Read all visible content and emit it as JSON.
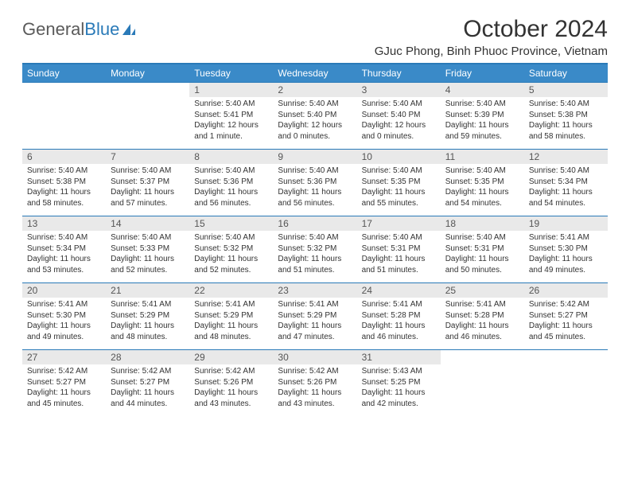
{
  "logo": {
    "text1": "General",
    "text2": "Blue"
  },
  "title": "October 2024",
  "location": "GJuc Phong, Binh Phuoc Province, Vietnam",
  "colors": {
    "header_bg": "#3a8ac8",
    "header_text": "#ffffff",
    "border": "#2a7ab8",
    "daynum_bg": "#e9e9e9",
    "text": "#333333",
    "logo_gray": "#5a5a5a",
    "logo_blue": "#2a7ab8",
    "page_bg": "#ffffff"
  },
  "typography": {
    "month_title_size": 30,
    "location_size": 15,
    "weekday_size": 12,
    "daynum_size": 12,
    "body_size": 10
  },
  "weekdays": [
    "Sunday",
    "Monday",
    "Tuesday",
    "Wednesday",
    "Thursday",
    "Friday",
    "Saturday"
  ],
  "weeks": [
    [
      {
        "num": "",
        "lines": [
          "",
          "",
          ""
        ]
      },
      {
        "num": "",
        "lines": [
          "",
          "",
          ""
        ]
      },
      {
        "num": "1",
        "lines": [
          "Sunrise: 5:40 AM",
          "Sunset: 5:41 PM",
          "Daylight: 12 hours and 1 minute."
        ]
      },
      {
        "num": "2",
        "lines": [
          "Sunrise: 5:40 AM",
          "Sunset: 5:40 PM",
          "Daylight: 12 hours and 0 minutes."
        ]
      },
      {
        "num": "3",
        "lines": [
          "Sunrise: 5:40 AM",
          "Sunset: 5:40 PM",
          "Daylight: 12 hours and 0 minutes."
        ]
      },
      {
        "num": "4",
        "lines": [
          "Sunrise: 5:40 AM",
          "Sunset: 5:39 PM",
          "Daylight: 11 hours and 59 minutes."
        ]
      },
      {
        "num": "5",
        "lines": [
          "Sunrise: 5:40 AM",
          "Sunset: 5:38 PM",
          "Daylight: 11 hours and 58 minutes."
        ]
      }
    ],
    [
      {
        "num": "6",
        "lines": [
          "Sunrise: 5:40 AM",
          "Sunset: 5:38 PM",
          "Daylight: 11 hours and 58 minutes."
        ]
      },
      {
        "num": "7",
        "lines": [
          "Sunrise: 5:40 AM",
          "Sunset: 5:37 PM",
          "Daylight: 11 hours and 57 minutes."
        ]
      },
      {
        "num": "8",
        "lines": [
          "Sunrise: 5:40 AM",
          "Sunset: 5:36 PM",
          "Daylight: 11 hours and 56 minutes."
        ]
      },
      {
        "num": "9",
        "lines": [
          "Sunrise: 5:40 AM",
          "Sunset: 5:36 PM",
          "Daylight: 11 hours and 56 minutes."
        ]
      },
      {
        "num": "10",
        "lines": [
          "Sunrise: 5:40 AM",
          "Sunset: 5:35 PM",
          "Daylight: 11 hours and 55 minutes."
        ]
      },
      {
        "num": "11",
        "lines": [
          "Sunrise: 5:40 AM",
          "Sunset: 5:35 PM",
          "Daylight: 11 hours and 54 minutes."
        ]
      },
      {
        "num": "12",
        "lines": [
          "Sunrise: 5:40 AM",
          "Sunset: 5:34 PM",
          "Daylight: 11 hours and 54 minutes."
        ]
      }
    ],
    [
      {
        "num": "13",
        "lines": [
          "Sunrise: 5:40 AM",
          "Sunset: 5:34 PM",
          "Daylight: 11 hours and 53 minutes."
        ]
      },
      {
        "num": "14",
        "lines": [
          "Sunrise: 5:40 AM",
          "Sunset: 5:33 PM",
          "Daylight: 11 hours and 52 minutes."
        ]
      },
      {
        "num": "15",
        "lines": [
          "Sunrise: 5:40 AM",
          "Sunset: 5:32 PM",
          "Daylight: 11 hours and 52 minutes."
        ]
      },
      {
        "num": "16",
        "lines": [
          "Sunrise: 5:40 AM",
          "Sunset: 5:32 PM",
          "Daylight: 11 hours and 51 minutes."
        ]
      },
      {
        "num": "17",
        "lines": [
          "Sunrise: 5:40 AM",
          "Sunset: 5:31 PM",
          "Daylight: 11 hours and 51 minutes."
        ]
      },
      {
        "num": "18",
        "lines": [
          "Sunrise: 5:40 AM",
          "Sunset: 5:31 PM",
          "Daylight: 11 hours and 50 minutes."
        ]
      },
      {
        "num": "19",
        "lines": [
          "Sunrise: 5:41 AM",
          "Sunset: 5:30 PM",
          "Daylight: 11 hours and 49 minutes."
        ]
      }
    ],
    [
      {
        "num": "20",
        "lines": [
          "Sunrise: 5:41 AM",
          "Sunset: 5:30 PM",
          "Daylight: 11 hours and 49 minutes."
        ]
      },
      {
        "num": "21",
        "lines": [
          "Sunrise: 5:41 AM",
          "Sunset: 5:29 PM",
          "Daylight: 11 hours and 48 minutes."
        ]
      },
      {
        "num": "22",
        "lines": [
          "Sunrise: 5:41 AM",
          "Sunset: 5:29 PM",
          "Daylight: 11 hours and 48 minutes."
        ]
      },
      {
        "num": "23",
        "lines": [
          "Sunrise: 5:41 AM",
          "Sunset: 5:29 PM",
          "Daylight: 11 hours and 47 minutes."
        ]
      },
      {
        "num": "24",
        "lines": [
          "Sunrise: 5:41 AM",
          "Sunset: 5:28 PM",
          "Daylight: 11 hours and 46 minutes."
        ]
      },
      {
        "num": "25",
        "lines": [
          "Sunrise: 5:41 AM",
          "Sunset: 5:28 PM",
          "Daylight: 11 hours and 46 minutes."
        ]
      },
      {
        "num": "26",
        "lines": [
          "Sunrise: 5:42 AM",
          "Sunset: 5:27 PM",
          "Daylight: 11 hours and 45 minutes."
        ]
      }
    ],
    [
      {
        "num": "27",
        "lines": [
          "Sunrise: 5:42 AM",
          "Sunset: 5:27 PM",
          "Daylight: 11 hours and 45 minutes."
        ]
      },
      {
        "num": "28",
        "lines": [
          "Sunrise: 5:42 AM",
          "Sunset: 5:27 PM",
          "Daylight: 11 hours and 44 minutes."
        ]
      },
      {
        "num": "29",
        "lines": [
          "Sunrise: 5:42 AM",
          "Sunset: 5:26 PM",
          "Daylight: 11 hours and 43 minutes."
        ]
      },
      {
        "num": "30",
        "lines": [
          "Sunrise: 5:42 AM",
          "Sunset: 5:26 PM",
          "Daylight: 11 hours and 43 minutes."
        ]
      },
      {
        "num": "31",
        "lines": [
          "Sunrise: 5:43 AM",
          "Sunset: 5:25 PM",
          "Daylight: 11 hours and 42 minutes."
        ]
      },
      {
        "num": "",
        "lines": [
          "",
          "",
          ""
        ]
      },
      {
        "num": "",
        "lines": [
          "",
          "",
          ""
        ]
      }
    ]
  ]
}
